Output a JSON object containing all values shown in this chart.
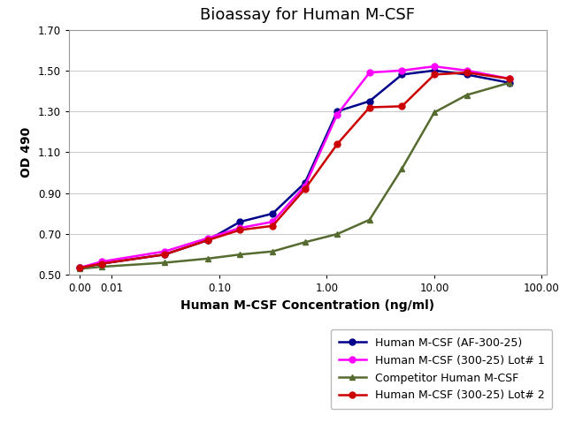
{
  "title": "Bioassay for Human M-CSF",
  "xlabel": "Human M-CSF Concentration (ng/ml)",
  "ylabel": "OD 490",
  "ylim": [
    0.5,
    1.7
  ],
  "yticks": [
    0.5,
    0.7,
    0.9,
    1.1,
    1.3,
    1.5,
    1.7
  ],
  "series": [
    {
      "label": "Human M-CSF (AF-300-25)",
      "color": "#00008B",
      "marker": "o",
      "markersize": 5,
      "linewidth": 1.8,
      "x": [
        0.005,
        0.008,
        0.031,
        0.078,
        0.156,
        0.313,
        0.625,
        1.25,
        2.5,
        5.0,
        10.0,
        20.0,
        50.0
      ],
      "y": [
        0.535,
        0.555,
        0.6,
        0.67,
        0.76,
        0.8,
        0.95,
        1.3,
        1.35,
        1.48,
        1.5,
        1.48,
        1.44
      ]
    },
    {
      "label": "Human M-CSF (300-25) Lot# 1",
      "color": "#FF00FF",
      "marker": "o",
      "markersize": 5,
      "linewidth": 1.8,
      "x": [
        0.005,
        0.008,
        0.031,
        0.078,
        0.156,
        0.313,
        0.625,
        1.25,
        2.5,
        5.0,
        10.0,
        20.0,
        50.0
      ],
      "y": [
        0.535,
        0.565,
        0.615,
        0.68,
        0.73,
        0.76,
        0.935,
        1.285,
        1.49,
        1.5,
        1.52,
        1.5,
        1.46
      ]
    },
    {
      "label": "Competitor Human M-CSF",
      "color": "#556B2F",
      "marker": "^",
      "markersize": 5,
      "linewidth": 1.8,
      "x": [
        0.005,
        0.008,
        0.031,
        0.078,
        0.156,
        0.313,
        0.625,
        1.25,
        2.5,
        5.0,
        10.0,
        20.0,
        50.0
      ],
      "y": [
        0.53,
        0.54,
        0.56,
        0.58,
        0.6,
        0.615,
        0.66,
        0.7,
        0.77,
        1.02,
        1.295,
        1.38,
        1.44
      ]
    },
    {
      "label": "Human M-CSF (300-25) Lot# 2",
      "color": "#CC0000",
      "marker": "o",
      "markersize": 5,
      "linewidth": 1.8,
      "x": [
        0.005,
        0.008,
        0.031,
        0.078,
        0.156,
        0.313,
        0.625,
        1.25,
        2.5,
        5.0,
        10.0,
        20.0,
        50.0
      ],
      "y": [
        0.535,
        0.555,
        0.6,
        0.67,
        0.72,
        0.74,
        0.92,
        1.14,
        1.32,
        1.325,
        1.48,
        1.49,
        1.46
      ]
    }
  ],
  "xtick_vals": [
    0.005,
    0.01,
    0.1,
    1.0,
    10.0,
    100.0
  ],
  "xtick_labels": [
    "0.00",
    "0.01",
    "0.10",
    "1.00",
    "10.00",
    "100.00"
  ],
  "background_color": "#ffffff",
  "plot_bg_color": "#ffffff",
  "grid_color": "#c8c8c8",
  "title_fontsize": 13,
  "label_fontsize": 10,
  "tick_fontsize": 8.5,
  "legend_fontsize": 9
}
